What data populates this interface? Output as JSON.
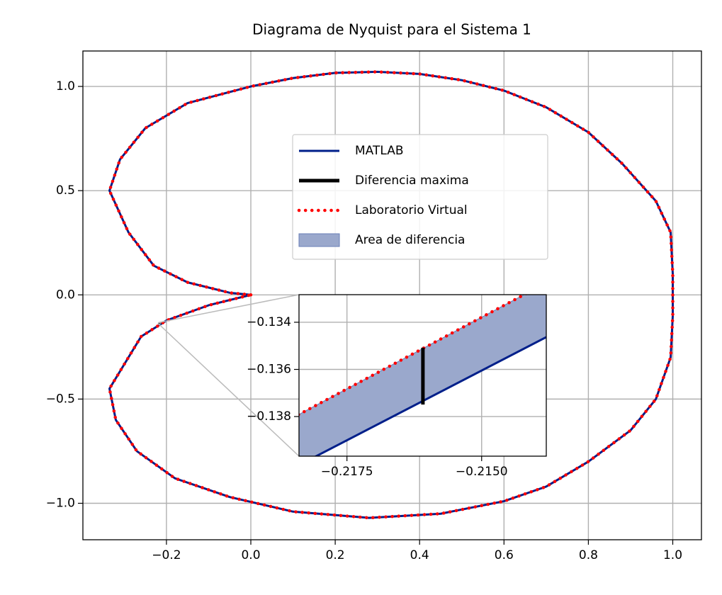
{
  "chart_data": [
    {
      "type": "line",
      "title": "Diagrama de Nyquist para el Sistema 1",
      "xlim": [
        -0.398,
        1.068
      ],
      "ylim": [
        -1.175,
        1.17
      ],
      "xticks": [
        {
          "value": -0.2,
          "label": "−0.2"
        },
        {
          "value": 0.0,
          "label": "0.0"
        },
        {
          "value": 0.2,
          "label": "0.2"
        },
        {
          "value": 0.4,
          "label": "0.4"
        },
        {
          "value": 0.6,
          "label": "0.6"
        },
        {
          "value": 0.8,
          "label": "0.8"
        },
        {
          "value": 1.0,
          "label": "1.0"
        }
      ],
      "yticks": [
        {
          "value": -1.0,
          "label": "−1.0"
        },
        {
          "value": -0.5,
          "label": "−0.5"
        },
        {
          "value": 0.0,
          "label": "0.0"
        },
        {
          "value": 0.5,
          "label": "0.5"
        },
        {
          "value": 1.0,
          "label": "1.0"
        }
      ],
      "grid": true,
      "legend": true,
      "series": [
        {
          "name": "MATLAB",
          "color": "#001f8a",
          "style": "solid",
          "x": [
            0,
            -0.05,
            -0.15,
            -0.23,
            -0.29,
            -0.335,
            -0.31,
            -0.25,
            -0.15,
            0,
            0.1,
            0.2,
            0.3,
            0.4,
            0.5,
            0.6,
            0.7,
            0.8,
            0.88,
            0.96,
            0.995,
            1.0,
            1.0,
            1.0,
            0.995,
            0.96,
            0.9,
            0.8,
            0.7,
            0.6,
            0.45,
            0.28,
            0.1,
            -0.05,
            -0.18,
            -0.27,
            -0.32,
            -0.335,
            -0.29,
            -0.26,
            -0.2,
            -0.1,
            0
          ],
          "values": [
            0,
            0.01,
            0.06,
            0.14,
            0.3,
            0.5,
            0.65,
            0.8,
            0.92,
            1.0,
            1.04,
            1.065,
            1.07,
            1.06,
            1.03,
            0.98,
            0.9,
            0.78,
            0.63,
            0.45,
            0.3,
            0.1,
            0,
            -0.1,
            -0.3,
            -0.5,
            -0.65,
            -0.8,
            -0.92,
            -0.99,
            -1.05,
            -1.07,
            -1.04,
            -0.97,
            -0.88,
            -0.75,
            -0.6,
            -0.45,
            -0.3,
            -0.2,
            -0.123,
            -0.05,
            0
          ]
        },
        {
          "name": "Diferencia maxima",
          "color": "#000000",
          "style": "thick",
          "x": [
            -0.21609,
            -0.21609
          ],
          "values": [
            -0.13508,
            -0.13749
          ]
        },
        {
          "name": "Laboratorio Virtual",
          "color": "#ff0000",
          "style": "dotted",
          "x": [
            0,
            -0.05,
            -0.15,
            -0.23,
            -0.29,
            -0.335,
            -0.31,
            -0.25,
            -0.15,
            0,
            0.1,
            0.2,
            0.3,
            0.4,
            0.5,
            0.6,
            0.7,
            0.8,
            0.88,
            0.96,
            0.995,
            1.0,
            1.0,
            1.0,
            0.995,
            0.96,
            0.9,
            0.8,
            0.7,
            0.6,
            0.45,
            0.28,
            0.1,
            -0.05,
            -0.18,
            -0.27,
            -0.32,
            -0.335,
            -0.29,
            -0.26,
            -0.2,
            -0.1,
            0
          ],
          "values": [
            0,
            0.01,
            0.06,
            0.14,
            0.3,
            0.5,
            0.65,
            0.8,
            0.92,
            1.0,
            1.04,
            1.065,
            1.07,
            1.06,
            1.03,
            0.98,
            0.9,
            0.78,
            0.63,
            0.45,
            0.3,
            0.1,
            0,
            -0.1,
            -0.3,
            -0.5,
            -0.65,
            -0.8,
            -0.92,
            -0.99,
            -1.05,
            -1.07,
            -1.04,
            -0.97,
            -0.88,
            -0.75,
            -0.6,
            -0.45,
            -0.3,
            -0.2,
            -0.123,
            -0.05,
            0
          ]
        }
      ],
      "area": {
        "name": "Area de diferencia",
        "color": "#9aa8cc"
      }
    },
    {
      "type": "line",
      "xlim": [
        -0.21839,
        -0.2138
      ],
      "ylim": [
        -0.13968,
        -0.13283
      ],
      "xticks": [
        {
          "value": -0.2175,
          "label": "−0.2175"
        },
        {
          "value": -0.215,
          "label": "−0.2150"
        }
      ],
      "yticks": [
        {
          "value": -0.134,
          "label": "−0.134"
        },
        {
          "value": -0.136,
          "label": "−0.136"
        },
        {
          "value": -0.138,
          "label": "−0.138"
        }
      ],
      "grid": true,
      "series": [
        {
          "color": "#001f8a",
          "style": "solid",
          "x": [
            -0.2184,
            -0.2138
          ],
          "values": [
            -0.14007,
            -0.13463
          ]
        },
        {
          "color": "#ff0000",
          "style": "dotted",
          "x": [
            -0.2184,
            -0.2138
          ],
          "values": [
            -0.13792,
            -0.13233
          ]
        },
        {
          "color": "#000000",
          "style": "thick",
          "x": [
            -0.21609,
            -0.21609
          ],
          "values": [
            -0.13508,
            -0.13749
          ]
        }
      ],
      "area": {
        "color": "#9aa8cc"
      }
    }
  ]
}
